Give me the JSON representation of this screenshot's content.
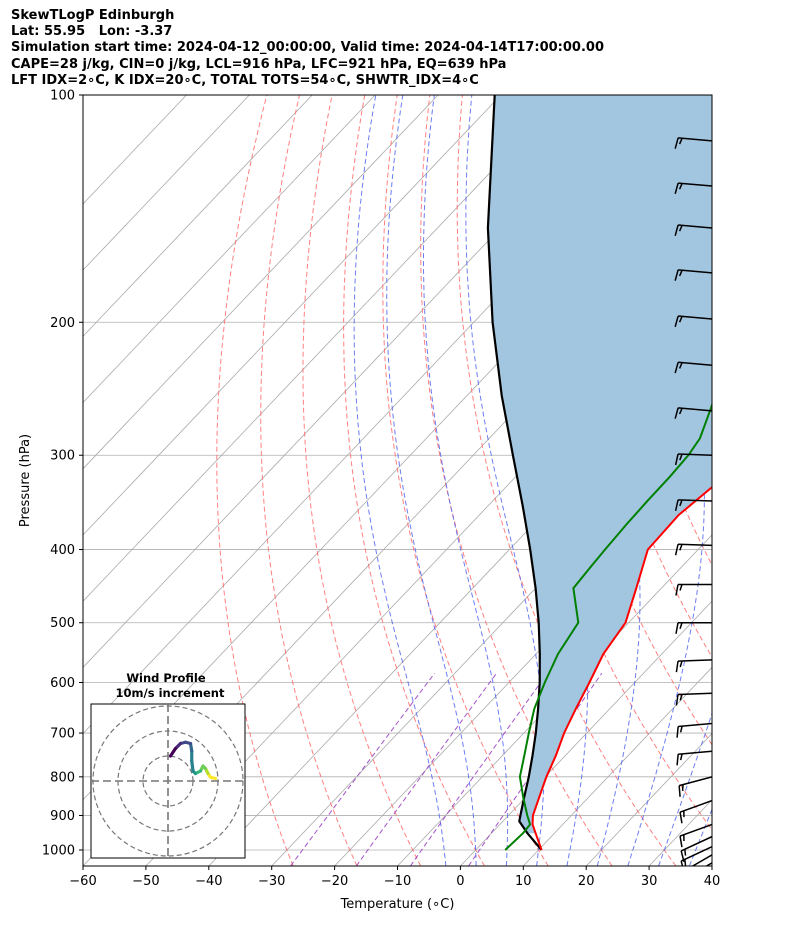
{
  "header": {
    "line1": "SkewTLogP Edinburgh",
    "line2": "Lat: 55.95   Lon: -3.37",
    "line3": "Simulation start time: 2024-04-12_00:00:00, Valid time: 2024-04-14T17:00:00.00",
    "line4": "CAPE=28 j/kg, CIN=0 j/kg, LCL=916 hPa, LFC=921 hPa, EQ=639 hPa",
    "line5": "LFT IDX=2∘C, K IDX=20∘C, TOTAL TOTS=54∘C, SHWTR_IDX=4∘C"
  },
  "chart_data": {
    "type": "line",
    "subtype": "skew-t log-p diagram",
    "xlabel": "Temperature (∘C)",
    "ylabel": "Pressure (hPa)",
    "xlim": [
      -60,
      40
    ],
    "ylim": [
      1050,
      100
    ],
    "y_scale": "log",
    "x_ticks": [
      -60,
      -50,
      -40,
      -30,
      -20,
      -10,
      0,
      10,
      20,
      30,
      40
    ],
    "x_tick_labels": [
      "−60",
      "−50",
      "−40",
      "−30",
      "−20",
      "−10",
      "0",
      "10",
      "20",
      "30",
      "40"
    ],
    "y_ticks": [
      1000,
      900,
      800,
      700,
      600,
      500,
      400,
      300,
      200,
      100
    ],
    "y_tick_labels": [
      "1000",
      "900",
      "800",
      "700",
      "600",
      "500",
      "400",
      "300",
      "200",
      "100"
    ],
    "grid": true,
    "colors": {
      "temperature": "#ff0000",
      "dewpoint": "#008000",
      "parcel": "#000000",
      "cape_fill": "#a3c6e0",
      "dry_adiabats": "#ff6a6a",
      "moist_adiabats": "#5566ee",
      "mixing_ratio": "#9b40c4",
      "isotherms": "#aaaaaa"
    },
    "series": [
      {
        "points": [
          [
            1000,
            10.5
          ],
          [
            950,
            7
          ],
          [
            925,
            5.2
          ],
          [
            900,
            3.9
          ],
          [
            850,
            2.1
          ],
          [
            800,
            0.2
          ],
          [
            750,
            -1.5
          ],
          [
            700,
            -3.6
          ],
          [
            650,
            -5.4
          ],
          [
            600,
            -7.2
          ],
          [
            550,
            -9.3
          ],
          [
            500,
            -10.5
          ],
          [
            450,
            -14.0
          ],
          [
            400,
            -18.0
          ],
          [
            360,
            -18.3
          ],
          [
            330,
            -17.2
          ],
          [
            300,
            -15.0
          ],
          [
            275,
            -11.5
          ],
          [
            250,
            -7.0
          ],
          [
            230,
            -3.2
          ],
          [
            210,
            0.5
          ],
          [
            190,
            4.8
          ],
          [
            180,
            6.3
          ],
          [
            160,
            7.5
          ],
          [
            140,
            9.2
          ],
          [
            120,
            11.8
          ],
          [
            110,
            13.0
          ],
          [
            100,
            14.5
          ]
        ]
      },
      {
        "points": [
          [
            1000,
            4.7
          ],
          [
            950,
            5.0
          ],
          [
            925,
            4.8
          ],
          [
            900,
            3.0
          ],
          [
            850,
            -0.5
          ],
          [
            800,
            -4.0
          ],
          [
            750,
            -6.5
          ],
          [
            700,
            -9.2
          ],
          [
            650,
            -12.0
          ],
          [
            600,
            -14.3
          ],
          [
            550,
            -16.5
          ],
          [
            500,
            -18.0
          ],
          [
            450,
            -24.0
          ],
          [
            420,
            -24.5
          ],
          [
            400,
            -24.8
          ],
          [
            370,
            -25.2
          ],
          [
            345,
            -25.4
          ],
          [
            320,
            -25.5
          ],
          [
            300,
            -25.8
          ],
          [
            285,
            -26.5
          ],
          [
            260,
            -29.3
          ],
          [
            240,
            -31.8
          ],
          [
            230,
            -33.0
          ],
          [
            220,
            -34.3
          ],
          [
            205,
            -36.0
          ],
          [
            185,
            -38.5
          ],
          [
            165,
            -38.8
          ],
          [
            150,
            -39.0
          ],
          [
            130,
            -39.8
          ],
          [
            115,
            -40.3
          ],
          [
            100,
            -40.8
          ]
        ]
      },
      {
        "points": [
          [
            1000,
            10.5
          ],
          [
            950,
            5.7
          ],
          [
            916,
            2.6
          ],
          [
            900,
            1.9
          ],
          [
            850,
            -0.3
          ],
          [
            800,
            -2.6
          ],
          [
            750,
            -5.2
          ],
          [
            700,
            -8.1
          ],
          [
            650,
            -11.4
          ],
          [
            600,
            -15.1
          ],
          [
            550,
            -19.4
          ],
          [
            500,
            -24.3
          ],
          [
            450,
            -30.0
          ],
          [
            400,
            -36.7
          ],
          [
            350,
            -44.5
          ],
          [
            300,
            -53.7
          ],
          [
            250,
            -64.5
          ],
          [
            200,
            -77.0
          ],
          [
            150,
            -92.0
          ],
          [
            100,
            -111.0
          ]
        ]
      }
    ],
    "wind_barbs": [
      {
        "p": 1040,
        "dir": 240,
        "speed": 10
      },
      {
        "p": 1015,
        "dir": 240,
        "speed": 15
      },
      {
        "p": 990,
        "dir": 245,
        "speed": 15
      },
      {
        "p": 960,
        "dir": 245,
        "speed": 15
      },
      {
        "p": 925,
        "dir": 250,
        "speed": 15
      },
      {
        "p": 860,
        "dir": 250,
        "speed": 15
      },
      {
        "p": 800,
        "dir": 255,
        "speed": 15
      },
      {
        "p": 740,
        "dir": 265,
        "speed": 15
      },
      {
        "p": 680,
        "dir": 265,
        "speed": 15
      },
      {
        "p": 620,
        "dir": 268,
        "speed": 15
      },
      {
        "p": 560,
        "dir": 268,
        "speed": 15
      },
      {
        "p": 500,
        "dir": 270,
        "speed": 15
      },
      {
        "p": 445,
        "dir": 270,
        "speed": 15
      },
      {
        "p": 395,
        "dir": 272,
        "speed": 15
      },
      {
        "p": 345,
        "dir": 272,
        "speed": 15
      },
      {
        "p": 300,
        "dir": 272,
        "speed": 15
      },
      {
        "p": 262,
        "dir": 275,
        "speed": 15
      },
      {
        "p": 228,
        "dir": 275,
        "speed": 15
      },
      {
        "p": 198,
        "dir": 275,
        "speed": 15
      },
      {
        "p": 172,
        "dir": 275,
        "speed": 15
      },
      {
        "p": 150,
        "dir": 275,
        "speed": 15
      },
      {
        "p": 132,
        "dir": 275,
        "speed": 15
      },
      {
        "p": 115,
        "dir": 275,
        "speed": 15
      }
    ],
    "hodograph": {
      "title_line1": "Wind Profile",
      "title_line2": "10m/s increment",
      "ring_increment_ms": 10,
      "colormap": "viridis",
      "trace_uv": [
        [
          19,
          1
        ],
        [
          17,
          1.5
        ],
        [
          16,
          3
        ],
        [
          15,
          5
        ],
        [
          14,
          6
        ],
        [
          13,
          4
        ],
        [
          11,
          3
        ],
        [
          10,
          4
        ],
        [
          9.5,
          8
        ],
        [
          9.5,
          12
        ],
        [
          9,
          15
        ],
        [
          7,
          15.5
        ],
        [
          5,
          15
        ],
        [
          3,
          13
        ],
        [
          1,
          10
        ]
      ]
    }
  }
}
